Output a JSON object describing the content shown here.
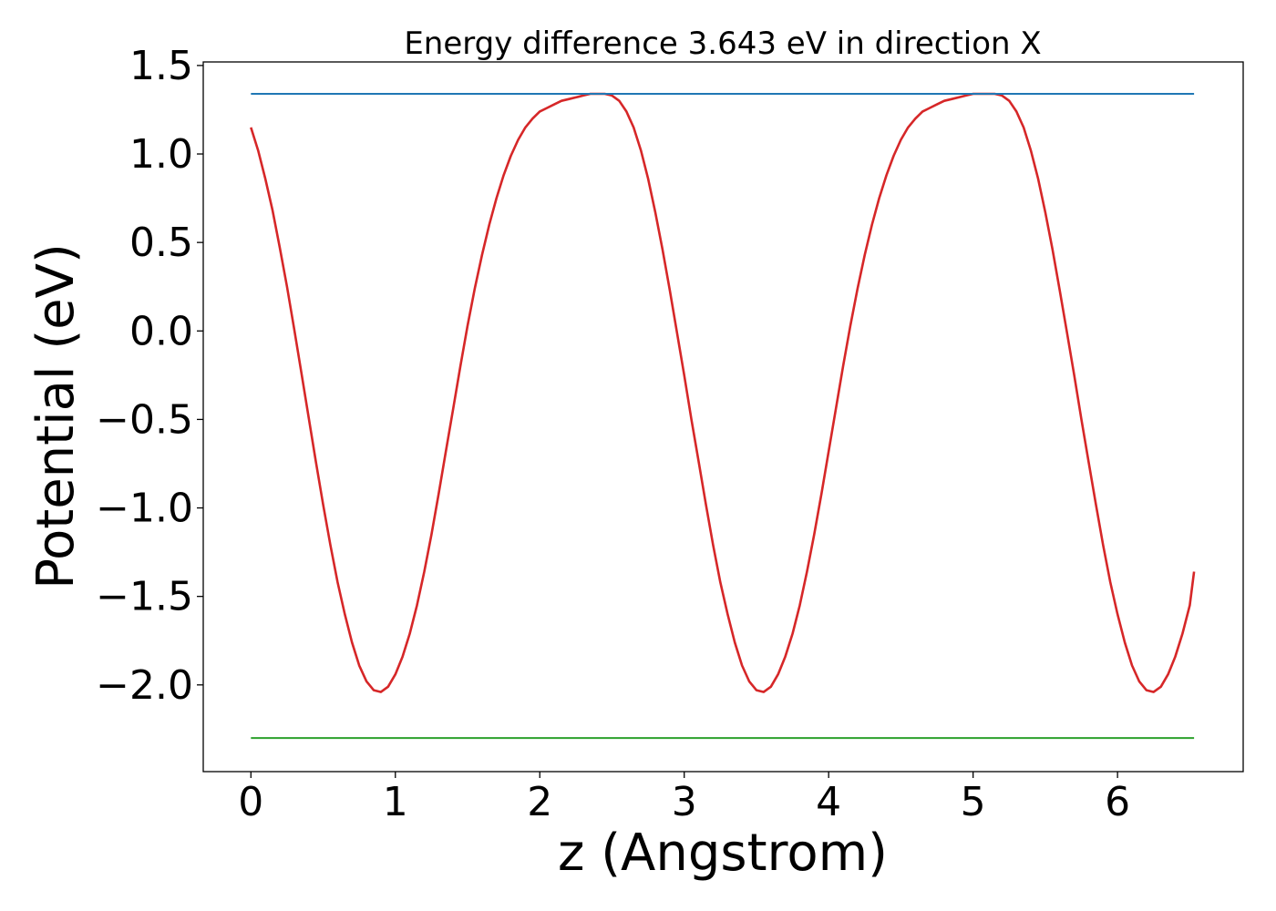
{
  "chart_data": {
    "type": "line",
    "title": "Energy difference 3.643 eV in direction X",
    "xlabel": "z (Angstrom)",
    "ylabel": "Potential (eV)",
    "xlim": [
      -0.33,
      6.87
    ],
    "ylim": [
      -2.49,
      1.52
    ],
    "xticks": [
      0,
      1,
      2,
      3,
      4,
      5,
      6
    ],
    "xtick_labels": [
      "0",
      "1",
      "2",
      "3",
      "4",
      "5",
      "6"
    ],
    "yticks": [
      1.5,
      1.0,
      0.5,
      0.0,
      -0.5,
      -1.0,
      -1.5,
      -2.0
    ],
    "ytick_labels": [
      "1.5",
      "1.0",
      "0.5",
      "0.0",
      "−0.5",
      "−1.0",
      "−1.5",
      "−2.0"
    ],
    "grid": false,
    "series": [
      {
        "color": "#d62728",
        "x": [
          0.0,
          0.05,
          0.1,
          0.15,
          0.2,
          0.25,
          0.3,
          0.35,
          0.4,
          0.45,
          0.5,
          0.55,
          0.6,
          0.65,
          0.7,
          0.75,
          0.8,
          0.85,
          0.9,
          0.95,
          1.0,
          1.05,
          1.1,
          1.15,
          1.2,
          1.25,
          1.3,
          1.35,
          1.4,
          1.45,
          1.5,
          1.55,
          1.6,
          1.65,
          1.7,
          1.75,
          1.8,
          1.85,
          1.9,
          1.95,
          2.0,
          2.05,
          2.1,
          2.15,
          2.2,
          2.25,
          2.3,
          2.35,
          2.4,
          2.45,
          2.5,
          2.55,
          2.6,
          2.65,
          2.7,
          2.75,
          2.8,
          2.85,
          2.9,
          2.95,
          3.0,
          3.05,
          3.1,
          3.15,
          3.2,
          3.25,
          3.3,
          3.35,
          3.4,
          3.45,
          3.5,
          3.55,
          3.6,
          3.65,
          3.7,
          3.75,
          3.8,
          3.85,
          3.9,
          3.95,
          4.0,
          4.05,
          4.1,
          4.15,
          4.2,
          4.25,
          4.3,
          4.35,
          4.4,
          4.45,
          4.5,
          4.55,
          4.6,
          4.65,
          4.7,
          4.75,
          4.8,
          4.85,
          4.9,
          4.95,
          5.0,
          5.05,
          5.1,
          5.15,
          5.2,
          5.25,
          5.3,
          5.35,
          5.4,
          5.45,
          5.5,
          5.55,
          5.6,
          5.65,
          5.7,
          5.75,
          5.8,
          5.85,
          5.9,
          5.95,
          6.0,
          6.05,
          6.1,
          6.15,
          6.2,
          6.25,
          6.3,
          6.35,
          6.4,
          6.45,
          6.5,
          6.53
        ],
        "y": [
          1.15,
          1.02,
          0.86,
          0.68,
          0.47,
          0.25,
          0.01,
          -0.24,
          -0.49,
          -0.74,
          -0.98,
          -1.21,
          -1.42,
          -1.6,
          -1.76,
          -1.89,
          -1.98,
          -2.03,
          -2.04,
          -2.01,
          -1.94,
          -1.84,
          -1.71,
          -1.55,
          -1.36,
          -1.15,
          -0.92,
          -0.68,
          -0.44,
          -0.2,
          0.03,
          0.24,
          0.43,
          0.6,
          0.75,
          0.88,
          0.99,
          1.08,
          1.15,
          1.2,
          1.24,
          1.26,
          1.28,
          1.3,
          1.31,
          1.32,
          1.33,
          1.34,
          1.34,
          1.34,
          1.33,
          1.3,
          1.24,
          1.15,
          1.02,
          0.86,
          0.67,
          0.46,
          0.23,
          -0.01,
          -0.25,
          -0.5,
          -0.74,
          -0.98,
          -1.21,
          -1.42,
          -1.6,
          -1.76,
          -1.89,
          -1.98,
          -2.03,
          -2.04,
          -2.01,
          -1.94,
          -1.84,
          -1.71,
          -1.55,
          -1.36,
          -1.15,
          -0.92,
          -0.68,
          -0.44,
          -0.2,
          0.03,
          0.24,
          0.43,
          0.6,
          0.75,
          0.88,
          0.99,
          1.08,
          1.15,
          1.2,
          1.24,
          1.26,
          1.28,
          1.3,
          1.31,
          1.32,
          1.33,
          1.34,
          1.34,
          1.34,
          1.34,
          1.33,
          1.3,
          1.24,
          1.15,
          1.02,
          0.86,
          0.67,
          0.46,
          0.23,
          -0.01,
          -0.25,
          -0.5,
          -0.74,
          -0.98,
          -1.21,
          -1.42,
          -1.6,
          -1.76,
          -1.89,
          -1.98,
          -2.03,
          -2.04,
          -2.01,
          -1.94,
          -1.84,
          -1.71,
          -1.55,
          -1.36
        ]
      },
      {
        "color": "#1f77b4",
        "x": [
          0.0,
          6.53
        ],
        "y": [
          1.34,
          1.34
        ]
      },
      {
        "color": "#2ca02c",
        "x": [
          0.0,
          6.53
        ],
        "y": [
          -2.3,
          -2.3
        ]
      }
    ]
  }
}
